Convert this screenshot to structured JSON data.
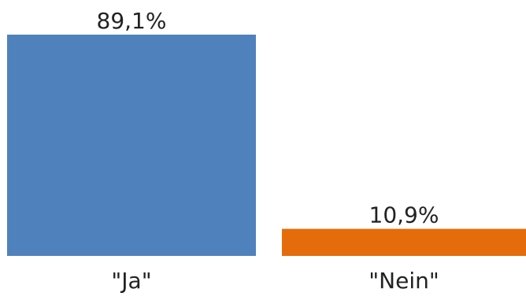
{
  "chart_data": {
    "type": "bar",
    "categories": [
      "\"Ja\"",
      "\"Nein\""
    ],
    "values": [
      89.1,
      10.9
    ],
    "data_labels": [
      "89,1%",
      "10,9%"
    ],
    "colors": [
      "#4f81bd",
      "#e46c0a"
    ],
    "ylim": [
      0,
      89.1
    ],
    "grid": false,
    "legend": "none"
  }
}
